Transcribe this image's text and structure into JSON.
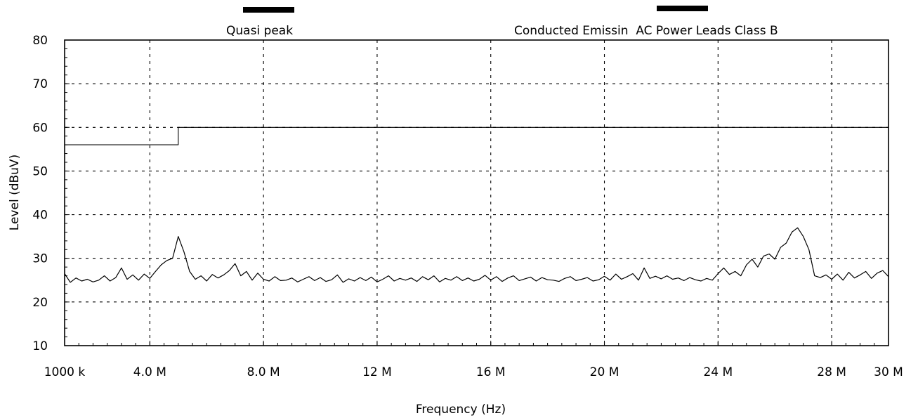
{
  "chart_data": {
    "type": "line",
    "xlabel": "Frequency (Hz)",
    "ylabel": "Level (dBuV)",
    "ylim": [
      10,
      80
    ],
    "xlim_MHz": [
      1,
      30
    ],
    "grid": "dotted",
    "x_ticks": [
      {
        "value": 1,
        "label": "1000 k"
      },
      {
        "value": 4,
        "label": "4.0 M"
      },
      {
        "value": 8,
        "label": "8.0 M"
      },
      {
        "value": 12,
        "label": "12 M"
      },
      {
        "value": 16,
        "label": "16 M"
      },
      {
        "value": 20,
        "label": "20 M"
      },
      {
        "value": 24,
        "label": "24 M"
      },
      {
        "value": 28,
        "label": "28 M"
      },
      {
        "value": 30,
        "label": "30 M"
      }
    ],
    "y_ticks": [
      {
        "value": 10,
        "label": "10"
      },
      {
        "value": 20,
        "label": "20"
      },
      {
        "value": 30,
        "label": "30"
      },
      {
        "value": 40,
        "label": "40"
      },
      {
        "value": 50,
        "label": "50"
      },
      {
        "value": 60,
        "label": "60"
      },
      {
        "value": 70,
        "label": "70"
      },
      {
        "value": 80,
        "label": "80"
      }
    ],
    "legend": {
      "left": "Quasi peak",
      "right": "Conducted Emissin  AC Power Leads Class B"
    },
    "series": [
      {
        "role": "limit-line",
        "color": "#000000",
        "x": [
          1,
          5,
          5,
          30
        ],
        "y": [
          56,
          56,
          60,
          60
        ]
      },
      {
        "role": "measurement",
        "color": "#000000",
        "x": [
          1.0,
          1.2,
          1.4,
          1.6,
          1.8,
          2.0,
          2.2,
          2.4,
          2.6,
          2.8,
          3.0,
          3.2,
          3.4,
          3.6,
          3.8,
          4.0,
          4.2,
          4.4,
          4.6,
          4.8,
          5.0,
          5.2,
          5.4,
          5.6,
          5.8,
          6.0,
          6.2,
          6.4,
          6.6,
          6.8,
          7.0,
          7.2,
          7.4,
          7.6,
          7.8,
          8.0,
          8.2,
          8.4,
          8.6,
          8.8,
          9.0,
          9.2,
          9.4,
          9.6,
          9.8,
          10.0,
          10.2,
          10.4,
          10.6,
          10.8,
          11.0,
          11.2,
          11.4,
          11.6,
          11.8,
          12.0,
          12.2,
          12.4,
          12.6,
          12.8,
          13.0,
          13.2,
          13.4,
          13.6,
          13.8,
          14.0,
          14.2,
          14.4,
          14.6,
          14.8,
          15.0,
          15.2,
          15.4,
          15.6,
          15.8,
          16.0,
          16.2,
          16.4,
          16.6,
          16.8,
          17.0,
          17.2,
          17.4,
          17.6,
          17.8,
          18.0,
          18.2,
          18.4,
          18.6,
          18.8,
          19.0,
          19.2,
          19.4,
          19.6,
          19.8,
          20.0,
          20.2,
          20.4,
          20.6,
          20.8,
          21.0,
          21.2,
          21.4,
          21.6,
          21.8,
          22.0,
          22.2,
          22.4,
          22.6,
          22.8,
          23.0,
          23.2,
          23.4,
          23.6,
          23.8,
          24.0,
          24.2,
          24.4,
          24.6,
          24.8,
          25.0,
          25.2,
          25.4,
          25.6,
          25.8,
          26.0,
          26.2,
          26.4,
          26.6,
          26.8,
          27.0,
          27.2,
          27.4,
          27.6,
          27.8,
          28.0,
          28.2,
          28.4,
          28.6,
          28.8,
          29.0,
          29.2,
          29.4,
          29.6,
          29.8,
          30.0
        ],
        "y": [
          26.5,
          24.5,
          25.5,
          24.8,
          25.2,
          24.6,
          25.0,
          26.0,
          24.8,
          25.6,
          27.8,
          25.2,
          26.2,
          25.0,
          26.4,
          25.4,
          27.0,
          28.5,
          29.5,
          30.0,
          35.0,
          31.5,
          27.0,
          25.2,
          26.0,
          24.8,
          26.3,
          25.5,
          26.2,
          27.2,
          28.8,
          26.0,
          27.0,
          25.0,
          26.6,
          25.2,
          24.8,
          25.8,
          24.9,
          25.0,
          25.5,
          24.6,
          25.2,
          25.8,
          24.9,
          25.6,
          24.7,
          25.1,
          26.2,
          24.5,
          25.3,
          24.8,
          25.6,
          24.9,
          25.7,
          24.6,
          25.2,
          26.0,
          24.8,
          25.4,
          25.0,
          25.5,
          24.7,
          25.8,
          25.1,
          26.0,
          24.6,
          25.4,
          25.0,
          25.8,
          24.9,
          25.5,
          24.8,
          25.2,
          26.1,
          25.0,
          25.8,
          24.7,
          25.5,
          26.0,
          24.9,
          25.3,
          25.7,
          24.8,
          25.6,
          25.1,
          25.0,
          24.7,
          25.4,
          25.8,
          24.9,
          25.2,
          25.6,
          24.8,
          25.1,
          25.9,
          25.0,
          26.4,
          25.2,
          25.8,
          26.5,
          25.0,
          27.8,
          25.4,
          25.9,
          25.3,
          26.0,
          25.2,
          25.5,
          24.9,
          25.6,
          25.1,
          24.8,
          25.4,
          25.0,
          26.5,
          27.8,
          26.3,
          27.0,
          26.0,
          28.5,
          29.8,
          28.0,
          30.5,
          31.0,
          29.8,
          32.5,
          33.5,
          36.0,
          37.0,
          35.0,
          32.0,
          26.0,
          25.6,
          26.2,
          25.2,
          26.4,
          25.0,
          26.8,
          25.5,
          26.2,
          27.0,
          25.4,
          26.6,
          27.2,
          25.8
        ]
      }
    ]
  }
}
